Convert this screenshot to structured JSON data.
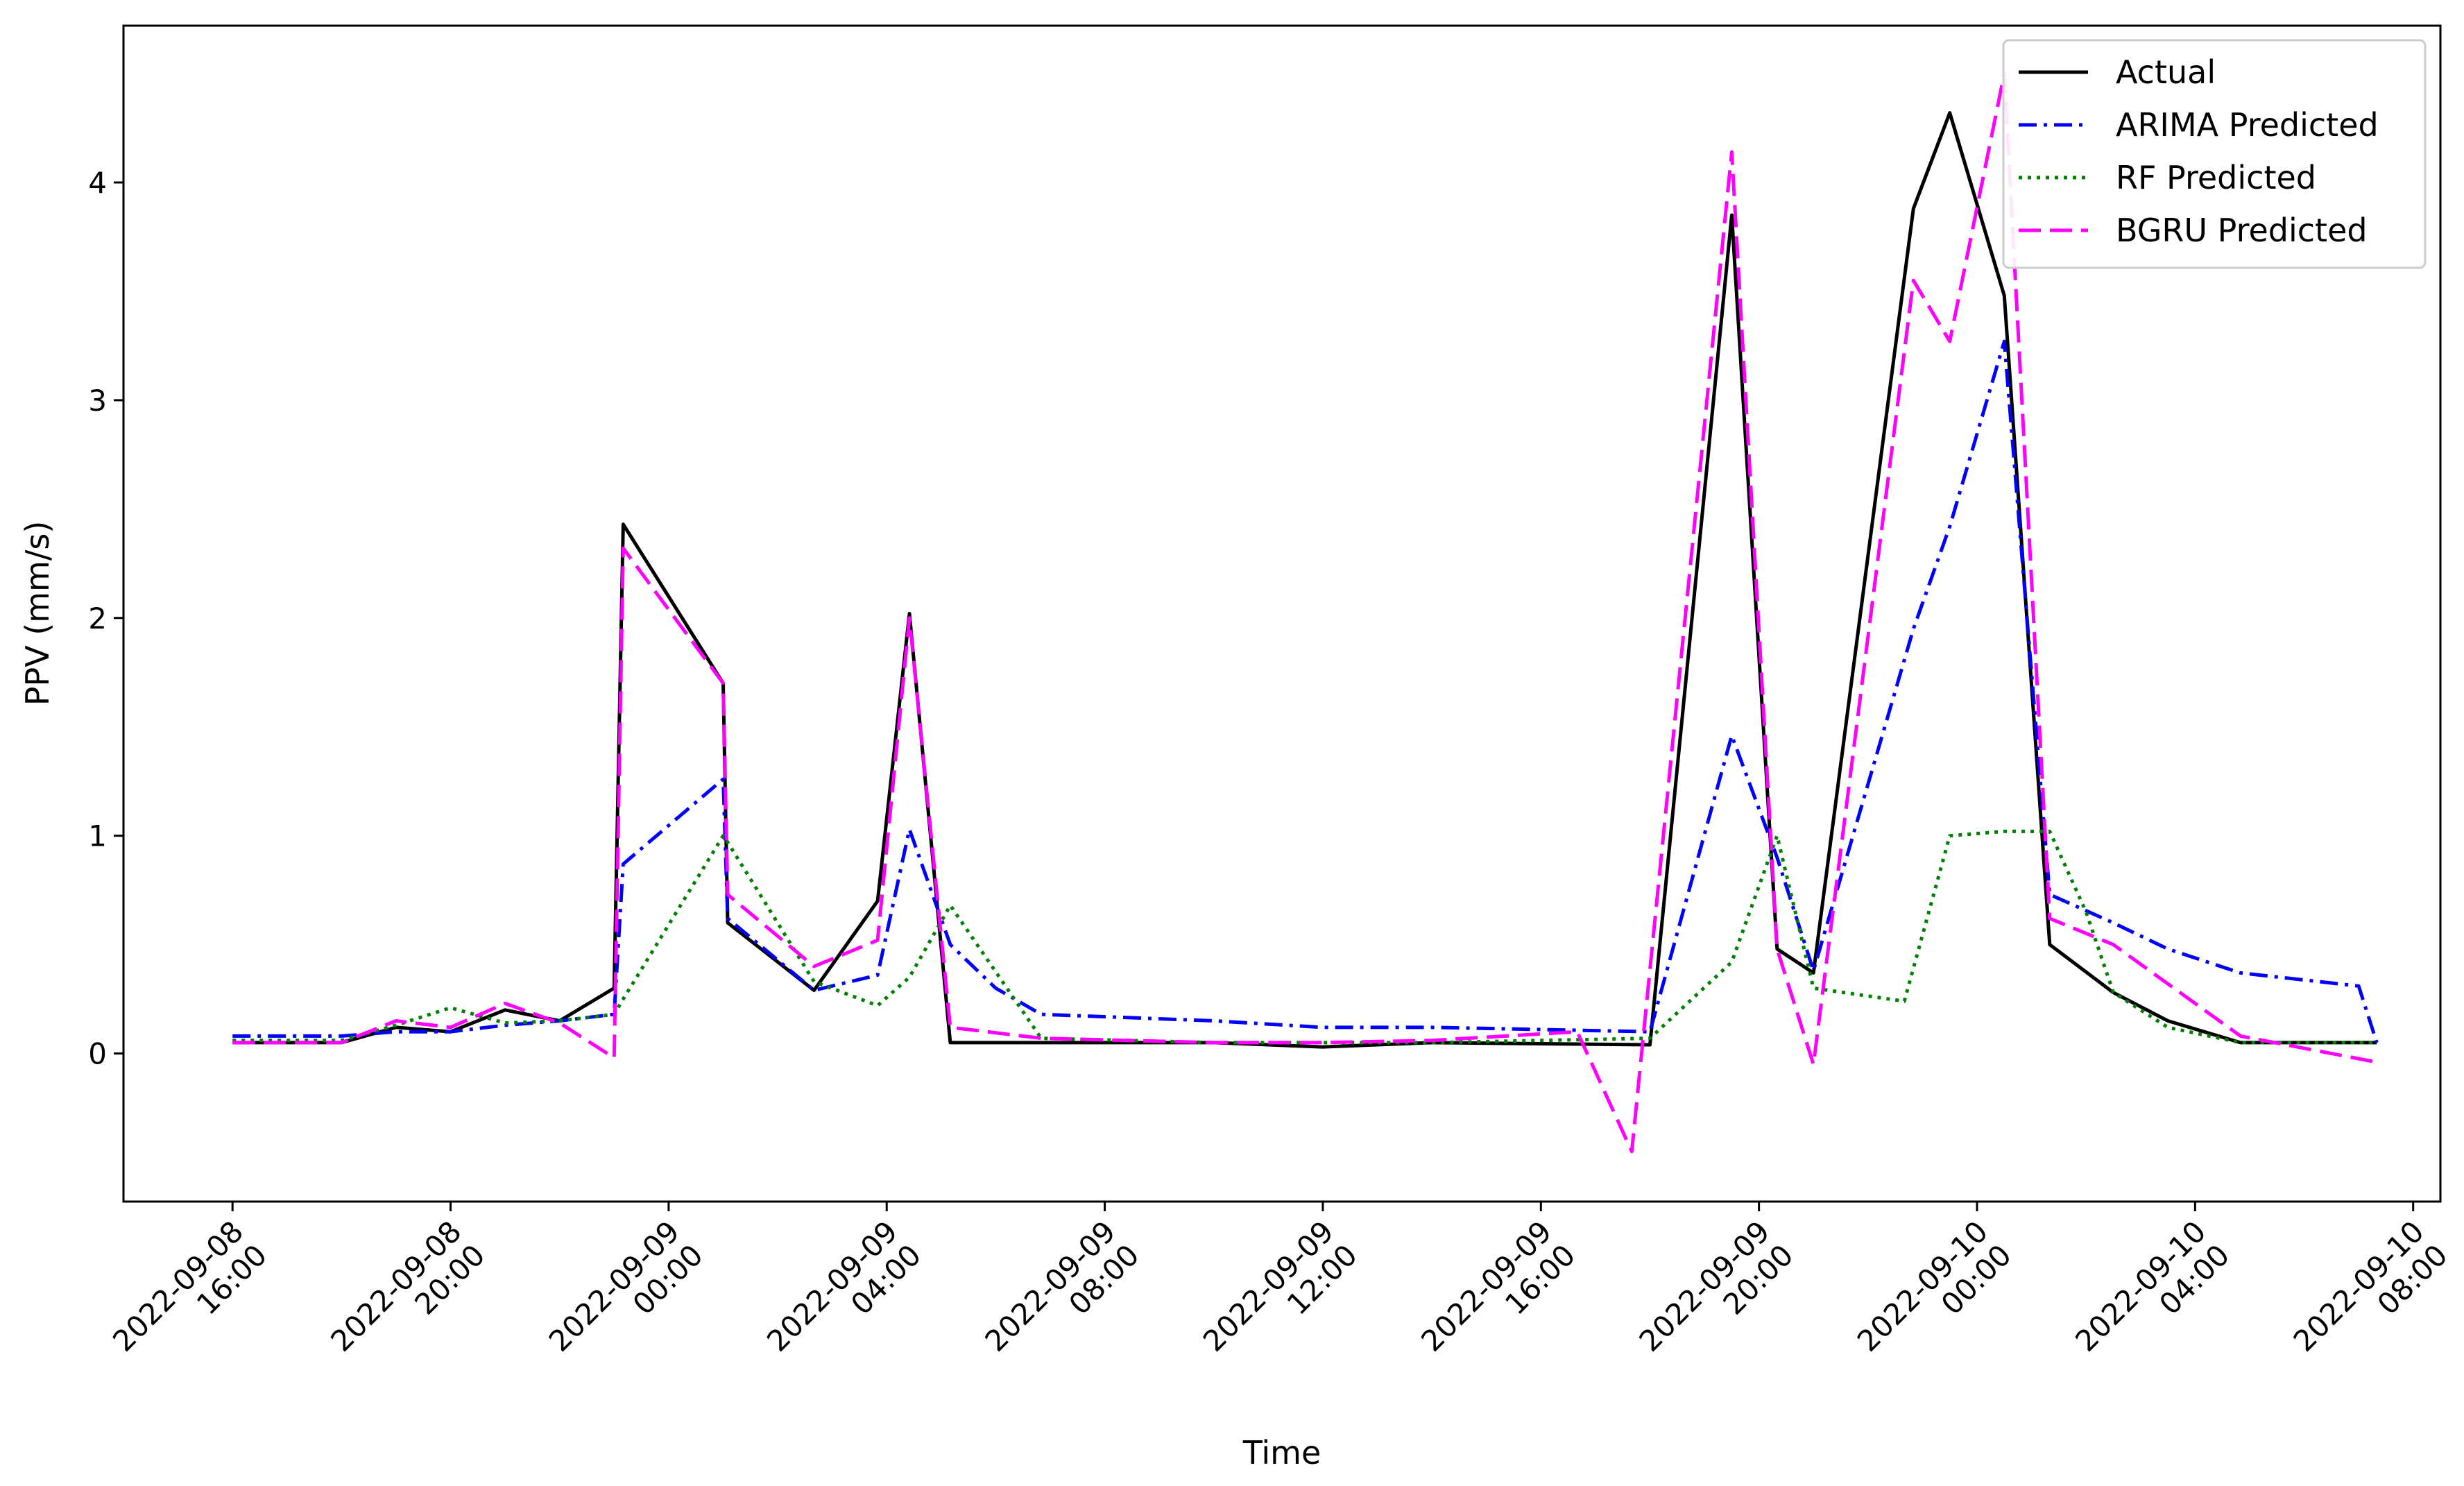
{
  "chart_data": {
    "type": "line",
    "title": "",
    "xlabel": "Time",
    "ylabel": "PPV (mm/s)",
    "ylim": [
      -0.68,
      4.72
    ],
    "xlim": [
      "2022-09-08 14:00",
      "2022-09-10 08:30"
    ],
    "grid": false,
    "legend_position": "top-right",
    "x_ticks": [
      {
        "date": "2022-09-08",
        "time": "16:00",
        "at": "2022-09-08 16:00"
      },
      {
        "date": "2022-09-08",
        "time": "20:00",
        "at": "2022-09-08 20:00"
      },
      {
        "date": "2022-09-09",
        "time": "00:00",
        "at": "2022-09-09 00:00"
      },
      {
        "date": "2022-09-09",
        "time": "04:00",
        "at": "2022-09-09 04:00"
      },
      {
        "date": "2022-09-09",
        "time": "08:00",
        "at": "2022-09-09 08:00"
      },
      {
        "date": "2022-09-09",
        "time": "12:00",
        "at": "2022-09-09 12:00"
      },
      {
        "date": "2022-09-09",
        "time": "16:00",
        "at": "2022-09-09 16:00"
      },
      {
        "date": "2022-09-09",
        "time": "20:00",
        "at": "2022-09-09 20:00"
      },
      {
        "date": "2022-09-10",
        "time": "00:00",
        "at": "2022-09-10 00:00"
      },
      {
        "date": "2022-09-10",
        "time": "04:00",
        "at": "2022-09-10 04:00"
      },
      {
        "date": "2022-09-10",
        "time": "08:00",
        "at": "2022-09-10 08:00"
      }
    ],
    "y_ticks": [
      0,
      1,
      2,
      3,
      4
    ],
    "series": [
      {
        "name": "Actual",
        "color": "#000000",
        "dash": "solid",
        "points": [
          [
            "2022-09-08 16:00",
            0.05
          ],
          [
            "2022-09-08 18:00",
            0.05
          ],
          [
            "2022-09-08 19:00",
            0.12
          ],
          [
            "2022-09-08 20:00",
            0.1
          ],
          [
            "2022-09-08 21:00",
            0.2
          ],
          [
            "2022-09-08 22:00",
            0.15
          ],
          [
            "2022-09-08 23:00",
            0.3
          ],
          [
            "2022-09-08 23:10",
            2.43
          ],
          [
            "2022-09-09 01:00",
            1.7
          ],
          [
            "2022-09-09 01:05",
            0.6
          ],
          [
            "2022-09-09 02:40",
            0.29
          ],
          [
            "2022-09-09 03:50",
            0.7
          ],
          [
            "2022-09-09 04:25",
            2.02
          ],
          [
            "2022-09-09 05:10",
            0.05
          ],
          [
            "2022-09-09 10:00",
            0.05
          ],
          [
            "2022-09-09 12:00",
            0.03
          ],
          [
            "2022-09-09 14:00",
            0.05
          ],
          [
            "2022-09-09 18:00",
            0.04
          ],
          [
            "2022-09-09 19:30",
            3.85
          ],
          [
            "2022-09-09 20:20",
            0.48
          ],
          [
            "2022-09-09 21:00",
            0.37
          ],
          [
            "2022-09-09 22:50",
            3.88
          ],
          [
            "2022-09-09 23:30",
            4.32
          ],
          [
            "2022-09-10 00:30",
            3.48
          ],
          [
            "2022-09-10 01:20",
            0.5
          ],
          [
            "2022-09-10 02:30",
            0.28
          ],
          [
            "2022-09-10 03:30",
            0.15
          ],
          [
            "2022-09-10 04:50",
            0.05
          ],
          [
            "2022-09-10 07:20",
            0.05
          ]
        ]
      },
      {
        "name": "ARIMA Predicted",
        "color": "#0000ff",
        "dash": "dashdot",
        "points": [
          [
            "2022-09-08 16:00",
            0.08
          ],
          [
            "2022-09-08 18:00",
            0.08
          ],
          [
            "2022-09-08 19:00",
            0.1
          ],
          [
            "2022-09-08 20:00",
            0.1
          ],
          [
            "2022-09-08 21:00",
            0.13
          ],
          [
            "2022-09-08 22:00",
            0.15
          ],
          [
            "2022-09-08 23:00",
            0.18
          ],
          [
            "2022-09-08 23:10",
            0.87
          ],
          [
            "2022-09-09 01:00",
            1.26
          ],
          [
            "2022-09-09 01:05",
            0.62
          ],
          [
            "2022-09-09 02:40",
            0.29
          ],
          [
            "2022-09-09 03:50",
            0.36
          ],
          [
            "2022-09-09 04:25",
            1.03
          ],
          [
            "2022-09-09 05:10",
            0.5
          ],
          [
            "2022-09-09 06:00",
            0.3
          ],
          [
            "2022-09-09 06:50",
            0.18
          ],
          [
            "2022-09-09 10:00",
            0.15
          ],
          [
            "2022-09-09 12:00",
            0.12
          ],
          [
            "2022-09-09 14:00",
            0.12
          ],
          [
            "2022-09-09 16:00",
            0.11
          ],
          [
            "2022-09-09 18:00",
            0.1
          ],
          [
            "2022-09-09 19:30",
            1.46
          ],
          [
            "2022-09-09 20:20",
            0.9
          ],
          [
            "2022-09-09 21:00",
            0.38
          ],
          [
            "2022-09-09 22:50",
            1.95
          ],
          [
            "2022-09-09 23:30",
            2.42
          ],
          [
            "2022-09-10 00:30",
            3.27
          ],
          [
            "2022-09-10 01:20",
            0.73
          ],
          [
            "2022-09-10 02:30",
            0.6
          ],
          [
            "2022-09-10 03:30",
            0.48
          ],
          [
            "2022-09-10 04:50",
            0.37
          ],
          [
            "2022-09-10 07:00",
            0.31
          ],
          [
            "2022-09-10 07:20",
            0.05
          ]
        ]
      },
      {
        "name": "RF Predicted",
        "color": "#008000",
        "dash": "dotted",
        "points": [
          [
            "2022-09-08 16:00",
            0.06
          ],
          [
            "2022-09-08 18:00",
            0.06
          ],
          [
            "2022-09-08 19:00",
            0.13
          ],
          [
            "2022-09-08 20:00",
            0.21
          ],
          [
            "2022-09-08 21:00",
            0.14
          ],
          [
            "2022-09-08 22:00",
            0.15
          ],
          [
            "2022-09-08 23:00",
            0.18
          ],
          [
            "2022-09-08 23:10",
            0.25
          ],
          [
            "2022-09-09 01:00",
            1.0
          ],
          [
            "2022-09-09 01:05",
            0.97
          ],
          [
            "2022-09-09 02:40",
            0.33
          ],
          [
            "2022-09-09 03:50",
            0.22
          ],
          [
            "2022-09-09 04:25",
            0.35
          ],
          [
            "2022-09-09 05:10",
            0.68
          ],
          [
            "2022-09-09 06:50",
            0.07
          ],
          [
            "2022-09-09 10:00",
            0.05
          ],
          [
            "2022-09-09 12:00",
            0.05
          ],
          [
            "2022-09-09 14:00",
            0.05
          ],
          [
            "2022-09-09 18:00",
            0.07
          ],
          [
            "2022-09-09 19:30",
            0.42
          ],
          [
            "2022-09-09 20:20",
            1.0
          ],
          [
            "2022-09-09 21:00",
            0.3
          ],
          [
            "2022-09-09 22:40",
            0.24
          ],
          [
            "2022-09-09 23:30",
            1.0
          ],
          [
            "2022-09-10 00:30",
            1.02
          ],
          [
            "2022-09-10 01:20",
            1.02
          ],
          [
            "2022-09-10 02:00",
            0.65
          ],
          [
            "2022-09-10 02:30",
            0.28
          ],
          [
            "2022-09-10 03:30",
            0.12
          ],
          [
            "2022-09-10 04:50",
            0.05
          ],
          [
            "2022-09-10 07:20",
            0.05
          ]
        ]
      },
      {
        "name": "BGRU Predicted",
        "color": "#ff00ff",
        "dash": "dashed",
        "points": [
          [
            "2022-09-08 16:00",
            0.05
          ],
          [
            "2022-09-08 18:00",
            0.05
          ],
          [
            "2022-09-08 19:00",
            0.15
          ],
          [
            "2022-09-08 20:00",
            0.12
          ],
          [
            "2022-09-08 21:00",
            0.23
          ],
          [
            "2022-09-08 22:00",
            0.14
          ],
          [
            "2022-09-08 23:00",
            -0.02
          ],
          [
            "2022-09-08 23:10",
            2.32
          ],
          [
            "2022-09-09 01:00",
            1.7
          ],
          [
            "2022-09-09 01:05",
            0.73
          ],
          [
            "2022-09-09 02:40",
            0.4
          ],
          [
            "2022-09-09 03:50",
            0.52
          ],
          [
            "2022-09-09 04:25",
            2.0
          ],
          [
            "2022-09-09 05:10",
            0.12
          ],
          [
            "2022-09-09 06:50",
            0.07
          ],
          [
            "2022-09-09 10:00",
            0.05
          ],
          [
            "2022-09-09 12:00",
            0.05
          ],
          [
            "2022-09-09 14:00",
            0.06
          ],
          [
            "2022-09-09 16:40",
            0.1
          ],
          [
            "2022-09-09 17:40",
            -0.45
          ],
          [
            "2022-09-09 19:30",
            4.14
          ],
          [
            "2022-09-09 20:20",
            0.48
          ],
          [
            "2022-09-09 21:00",
            -0.05
          ],
          [
            "2022-09-09 22:50",
            3.55
          ],
          [
            "2022-09-09 23:30",
            3.27
          ],
          [
            "2022-09-10 00:30",
            4.5
          ],
          [
            "2022-09-10 01:20",
            0.62
          ],
          [
            "2022-09-10 02:30",
            0.5
          ],
          [
            "2022-09-10 04:50",
            0.08
          ],
          [
            "2022-09-10 07:20",
            -0.04
          ]
        ]
      }
    ]
  }
}
